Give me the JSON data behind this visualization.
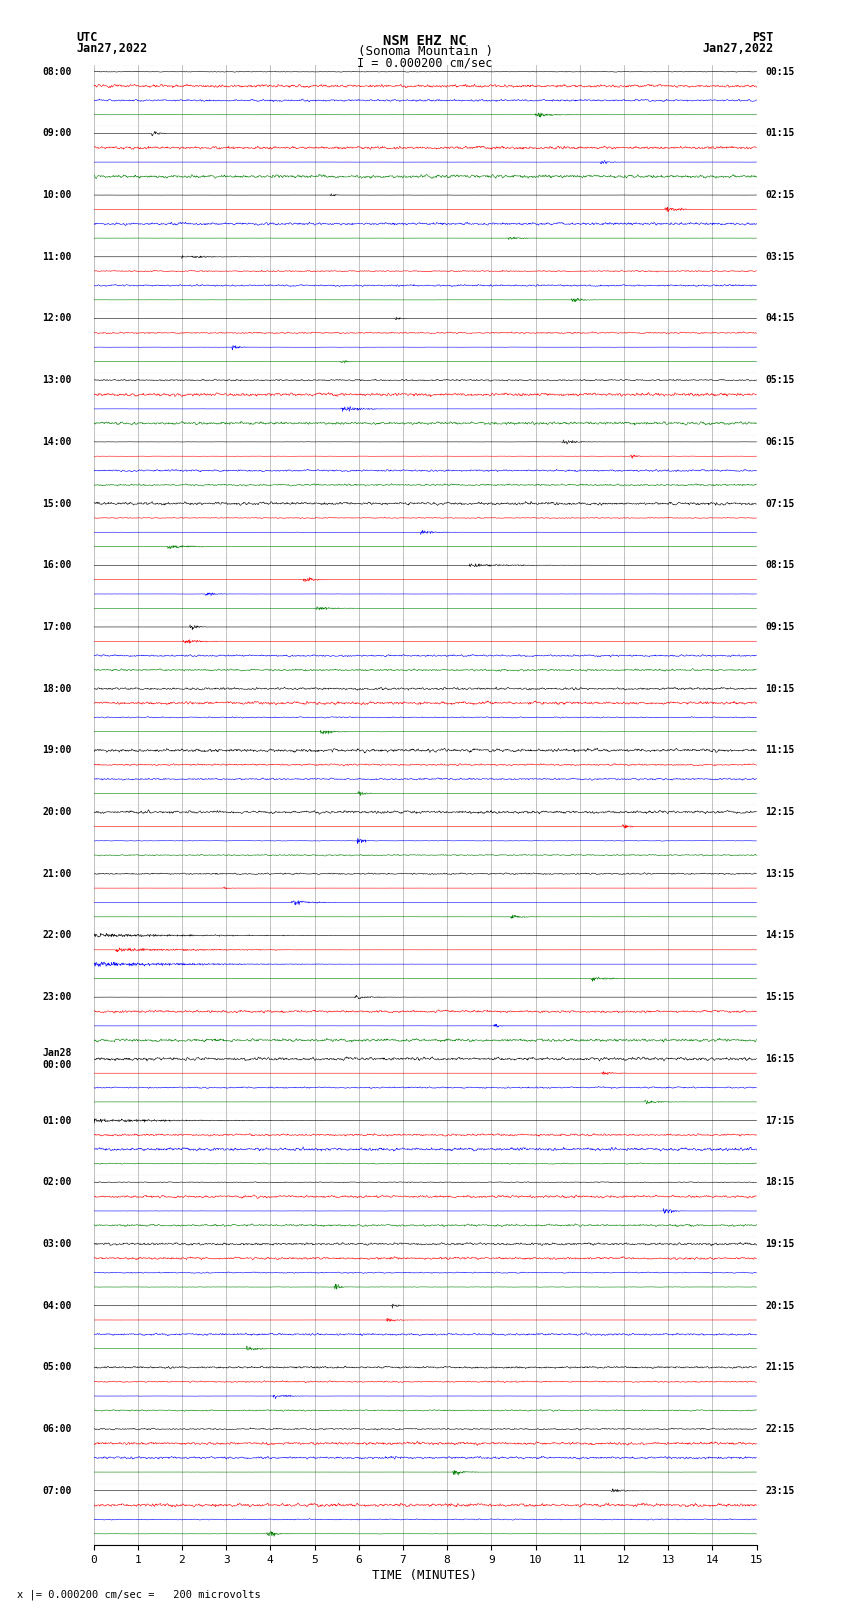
{
  "title_line1": "NSM EHZ NC",
  "title_line2": "(Sonoma Mountain )",
  "scale_label": "I = 0.000200 cm/sec",
  "bottom_label": "x |= 0.000200 cm/sec =   200 microvolts",
  "left_label_utc": "UTC",
  "left_date": "Jan27,2022",
  "right_label_pst": "PST",
  "right_date": "Jan27,2022",
  "xlabel": "TIME (MINUTES)",
  "left_times": [
    "08:00",
    "09:00",
    "10:00",
    "11:00",
    "12:00",
    "13:00",
    "14:00",
    "15:00",
    "16:00",
    "17:00",
    "18:00",
    "19:00",
    "20:00",
    "21:00",
    "22:00",
    "23:00",
    "Jan28\n00:00",
    "01:00",
    "02:00",
    "03:00",
    "04:00",
    "05:00",
    "06:00",
    "07:00"
  ],
  "right_times": [
    "00:15",
    "01:15",
    "02:15",
    "03:15",
    "04:15",
    "05:15",
    "06:15",
    "07:15",
    "08:15",
    "09:15",
    "10:15",
    "11:15",
    "12:15",
    "13:15",
    "14:15",
    "15:15",
    "16:15",
    "17:15",
    "18:15",
    "19:15",
    "20:15",
    "21:15",
    "22:15",
    "23:15"
  ],
  "n_traces_per_hour": 4,
  "colors": [
    "black",
    "red",
    "blue",
    "green"
  ],
  "bg_color": "white",
  "grid_color": "#aaaaaa",
  "trace_lw": 0.4,
  "n_pts": 1800,
  "minutes": 15
}
